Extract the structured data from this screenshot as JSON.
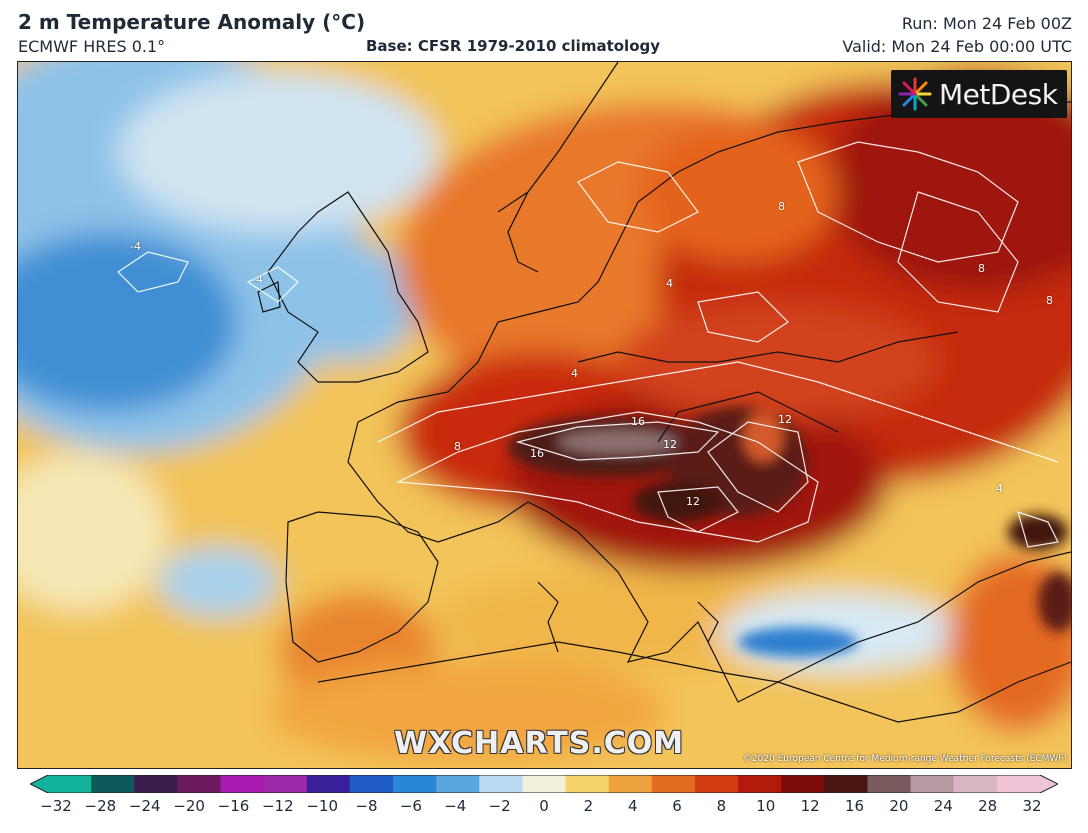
{
  "header": {
    "title": "2 m Temperature Anomaly (°C)",
    "model": "ECMWF HRES 0.1°",
    "base": "Base: CFSR 1979-2010 climatology",
    "run": "Run: Mon 24 Feb 00Z",
    "valid": "Valid: Mon 24 Feb 00:00 UTC"
  },
  "map": {
    "logo_text": "MetDesk",
    "logo_icon": "metdesk-burst-icon",
    "watermark": "WXCHARTS.COM",
    "copyright": "©2020 European Centre for Medium-range Weather Forecasts (ECMWF)",
    "contour_labels": [
      "-4",
      "-4",
      "4",
      "4",
      "8",
      "8",
      "8",
      "12",
      "12",
      "12",
      "16",
      "16",
      "4",
      "8"
    ]
  },
  "colorbar": {
    "ticks": [
      "−32",
      "−28",
      "−24",
      "−20",
      "−16",
      "−12",
      "−10",
      "−8",
      "−6",
      "−4",
      "−2",
      "0",
      "2",
      "4",
      "6",
      "8",
      "10",
      "12",
      "16",
      "20",
      "24",
      "28",
      "32"
    ],
    "colors": [
      "#12b39a",
      "#0e5a5a",
      "#3b1e4e",
      "#6b1a5e",
      "#a81bb0",
      "#9c2aa8",
      "#3a1f9a",
      "#1f5cc4",
      "#2a86d6",
      "#5aa7df",
      "#b8d9ef",
      "#f3f0dc",
      "#f4d36a",
      "#eda23d",
      "#e36c1f",
      "#d43d12",
      "#b21b0b",
      "#7d0c08",
      "#4a1610",
      "#7a5a5c",
      "#b79da3",
      "#d8b6c4",
      "#f1c3d6"
    ]
  }
}
